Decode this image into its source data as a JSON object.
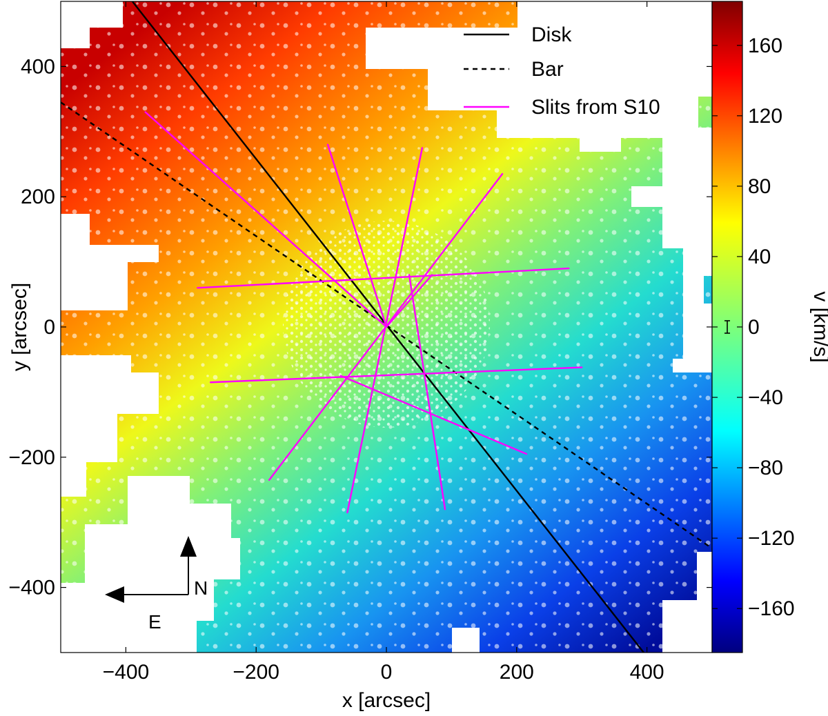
{
  "chart_data": {
    "type": "heatmap",
    "title": "",
    "xlabel": "x [arcsec]",
    "ylabel": "y [arcsec]",
    "xlim": [
      -500,
      500
    ],
    "ylim": [
      -500,
      500
    ],
    "xticks": [
      -400,
      -200,
      0,
      200,
      400
    ],
    "yticks": [
      -400,
      -200,
      0,
      200,
      400
    ],
    "grid": false,
    "colorbar": {
      "label": "v [km/s]",
      "range": [
        -185,
        185
      ],
      "ticks": [
        -160,
        -120,
        -80,
        -40,
        0,
        40,
        80,
        120,
        160
      ],
      "colormap": "jet",
      "errorbar_marker_at": 0
    },
    "legend": {
      "placement": "top-right",
      "entries": [
        {
          "label": "Disk",
          "style": "solid",
          "color": "#000000"
        },
        {
          "label": "Bar",
          "style": "dashed",
          "color": "#000000"
        },
        {
          "label": "Slits from S10",
          "style": "solid",
          "color": "#ff00ff"
        }
      ]
    },
    "velocity_field": {
      "gradient_direction_deg": 123,
      "velocity_at_corner_upper_left": 170,
      "velocity_at_corner_lower_right": -170
    },
    "lines": [
      {
        "name": "Disk",
        "points": [
          [
            -390,
            500
          ],
          [
            395,
            -500
          ]
        ]
      },
      {
        "name": "Bar",
        "points": [
          [
            -500,
            345
          ],
          [
            500,
            -340
          ]
        ]
      }
    ],
    "slits": [
      {
        "from": [
          -370,
          330
        ],
        "to": [
          0,
          0
        ]
      },
      {
        "from": [
          -290,
          60
        ],
        "to": [
          280,
          90
        ]
      },
      {
        "from": [
          -270,
          -85
        ],
        "to": [
          300,
          -62
        ]
      },
      {
        "from": [
          -90,
          280
        ],
        "to": [
          0,
          0
        ]
      },
      {
        "from": [
          55,
          275
        ],
        "to": [
          -60,
          -285
        ]
      },
      {
        "from": [
          178,
          235
        ],
        "to": [
          -180,
          -235
        ]
      },
      {
        "from": [
          35,
          80
        ],
        "to": [
          90,
          -280
        ]
      },
      {
        "from": [
          -70,
          -75
        ],
        "to": [
          215,
          -195
        ]
      },
      {
        "from": [
          0,
          0
        ],
        "to": [
          70,
          80
        ]
      }
    ],
    "compass": {
      "north_label": "N",
      "east_label": "E"
    }
  }
}
